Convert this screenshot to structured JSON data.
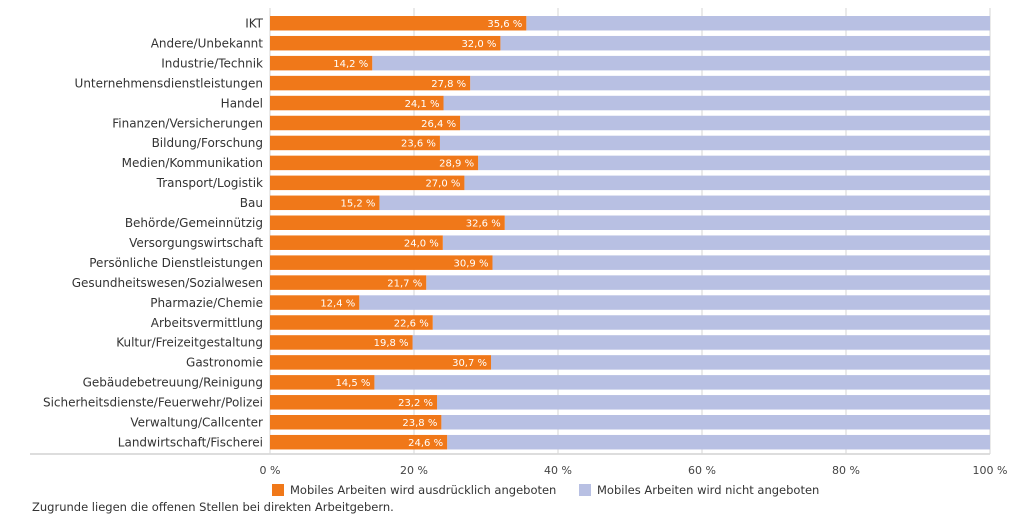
{
  "chart_data": {
    "type": "bar",
    "orientation": "horizontal",
    "stacked": true,
    "categories": [
      "IKT",
      "Andere/Unbekannt",
      "Industrie/Technik",
      "Unternehmensdienstleistungen",
      "Handel",
      "Finanzen/Versicherungen",
      "Bildung/Forschung",
      "Medien/Kommunikation",
      "Transport/Logistik",
      "Bau",
      "Behörde/Gemeinnützig",
      "Versorgungswirtschaft",
      "Persönliche Dienstleistungen",
      "Gesundheitswesen/Sozialwesen",
      "Pharmazie/Chemie",
      "Arbeitsvermittlung",
      "Kultur/Freizeitgestaltung",
      "Gastronomie",
      "Gebäudebetreuung/Reinigung",
      "Sicherheitsdienste/Feuerwehr/Polizei",
      "Verwaltung/Callcenter",
      "Landwirtschaft/Fischerei"
    ],
    "series": [
      {
        "name": "Mobiles Arbeiten wird ausdrücklich angeboten",
        "color": "#f07819",
        "values": [
          35.6,
          32.0,
          14.2,
          27.8,
          24.1,
          26.4,
          23.6,
          28.9,
          27.0,
          15.2,
          32.6,
          24.0,
          30.9,
          21.7,
          12.4,
          22.6,
          19.8,
          30.7,
          14.5,
          23.2,
          23.8,
          24.6
        ]
      },
      {
        "name": "Mobiles Arbeiten wird nicht angeboten",
        "color": "#b8c0e3",
        "values": [
          64.4,
          68.0,
          85.8,
          72.2,
          75.9,
          73.6,
          76.4,
          71.1,
          73.0,
          84.8,
          67.4,
          76.0,
          69.1,
          78.3,
          87.6,
          77.4,
          80.2,
          69.3,
          85.5,
          76.8,
          76.2,
          75.4
        ]
      }
    ],
    "data_labels": [
      "35,6 %",
      "32,0 %",
      "14,2 %",
      "27,8 %",
      "24,1 %",
      "26,4 %",
      "23,6 %",
      "28,9 %",
      "27,0 %",
      "15,2 %",
      "32,6 %",
      "24,0 %",
      "30,9 %",
      "21,7 %",
      "12,4 %",
      "22,6 %",
      "19,8 %",
      "30,7 %",
      "14,5 %",
      "23,2 %",
      "23,8 %",
      "24,6 %"
    ],
    "xlim": [
      0,
      100
    ],
    "x_ticks": [
      0,
      20,
      40,
      60,
      80,
      100
    ],
    "x_tick_labels": [
      "0 %",
      "20 %",
      "40 %",
      "60 %",
      "80 %",
      "100 %"
    ],
    "grid": true,
    "legend_position": "bottom",
    "title": "",
    "xlabel": "",
    "ylabel": ""
  },
  "footnote": "Zugrunde liegen die offenen Stellen bei direkten Arbeitgebern."
}
